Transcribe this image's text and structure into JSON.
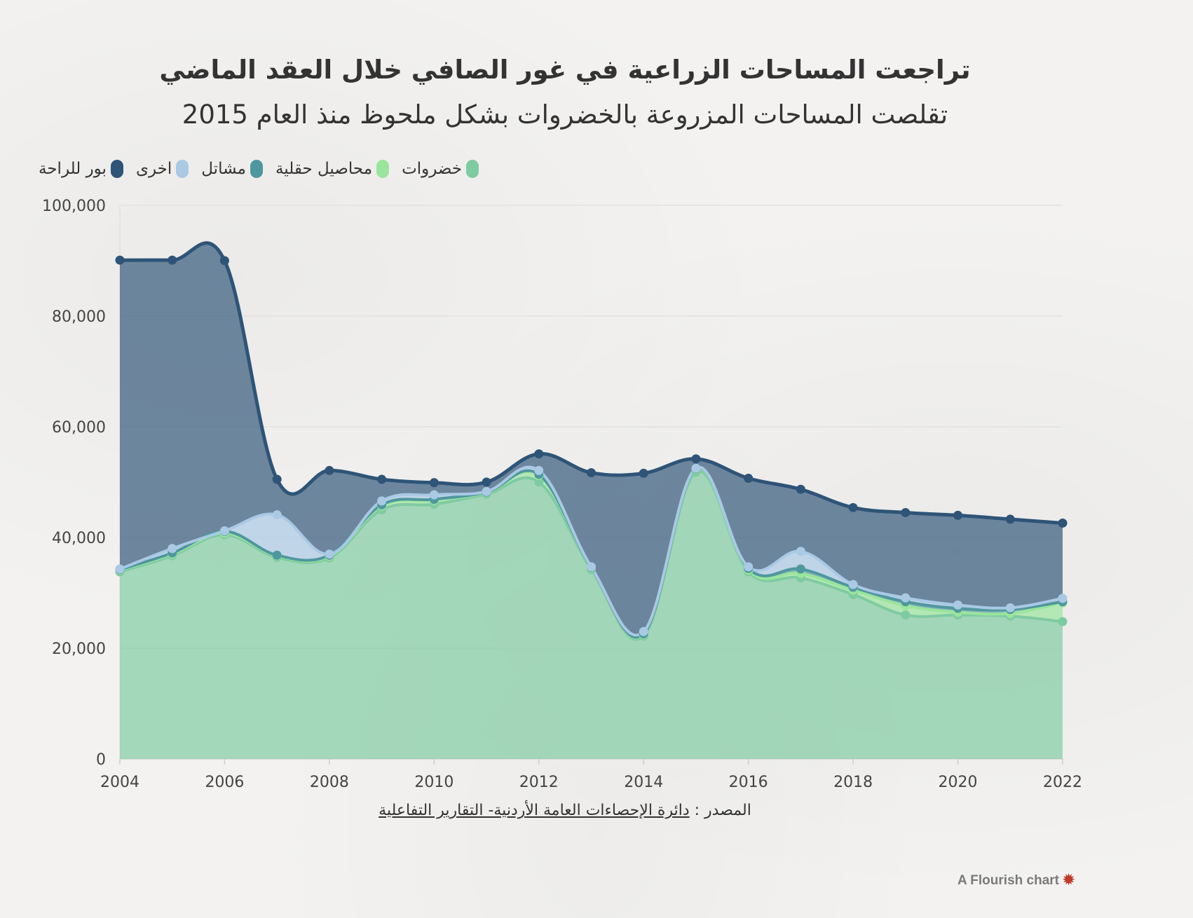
{
  "title": "تراجعت المساحات الزراعية في غور الصافي خلال العقد الماضي",
  "subtitle": "تقلصت المساحات المزروعة بالخضروات بشكل ملحوظ منذ العام 2015",
  "source": {
    "prefix": "المصدر :",
    "link_text": "دائرة الإحصاءات العامة الأردنية- التقارير التفاعلية"
  },
  "credit": {
    "text": "A Flourish chart",
    "icon": "flourish-star-icon"
  },
  "chart_data": {
    "type": "area",
    "stacked": true,
    "title": "تراجعت المساحات الزراعية في غور الصافي خلال العقد الماضي",
    "subtitle": "تقلصت المساحات المزروعة بالخضروات بشكل ملحوظ منذ العام 2015",
    "x": [
      2004,
      2005,
      2006,
      2007,
      2008,
      2009,
      2010,
      2011,
      2012,
      2013,
      2014,
      2015,
      2016,
      2017,
      2018,
      2019,
      2020,
      2021,
      2022
    ],
    "xlim": [
      2004,
      2022
    ],
    "ylim": [
      0,
      100000
    ],
    "xticks": [
      "2004",
      "2006",
      "2008",
      "2010",
      "2012",
      "2014",
      "2016",
      "2018",
      "2020",
      "2022"
    ],
    "yticks": [
      "0",
      "20,000",
      "40,000",
      "60,000",
      "80,000",
      "100,000"
    ],
    "ytick_values": [
      0,
      20000,
      40000,
      60000,
      80000,
      100000
    ],
    "grid": true,
    "legend_position": "top-left",
    "series": [
      {
        "name": "خضروات",
        "color": "#7fcba1",
        "values": [
          33800,
          36700,
          40500,
          36400,
          36300,
          45000,
          46000,
          47800,
          50000,
          34200,
          22200,
          51800,
          33800,
          32700,
          29700,
          26000,
          26000,
          25800,
          24800
        ]
      },
      {
        "name": "محاصيل حقلية",
        "color": "#9ae59c",
        "values": [
          300,
          300,
          300,
          300,
          300,
          700,
          700,
          300,
          1200,
          300,
          300,
          500,
          300,
          800,
          800,
          1700,
          500,
          500,
          3400
        ]
      },
      {
        "name": "مشاتل",
        "color": "#4f979f",
        "values": [
          100,
          200,
          300,
          100,
          200,
          200,
          200,
          100,
          200,
          100,
          100,
          100,
          300,
          800,
          500,
          700,
          700,
          700,
          200
        ]
      },
      {
        "name": "اخرى",
        "color": "#a9c9e5",
        "values": [
          100,
          800,
          100,
          7300,
          200,
          700,
          800,
          100,
          700,
          100,
          400,
          100,
          300,
          3200,
          500,
          700,
          600,
          300,
          600
        ]
      },
      {
        "name": "بور للراحة",
        "color": "#2e5477",
        "values": [
          55800,
          52100,
          48800,
          6400,
          15100,
          3900,
          2200,
          1700,
          3000,
          17000,
          28600,
          1700,
          16000,
          11200,
          13900,
          15400,
          16200,
          16000,
          13600
        ]
      }
    ]
  }
}
